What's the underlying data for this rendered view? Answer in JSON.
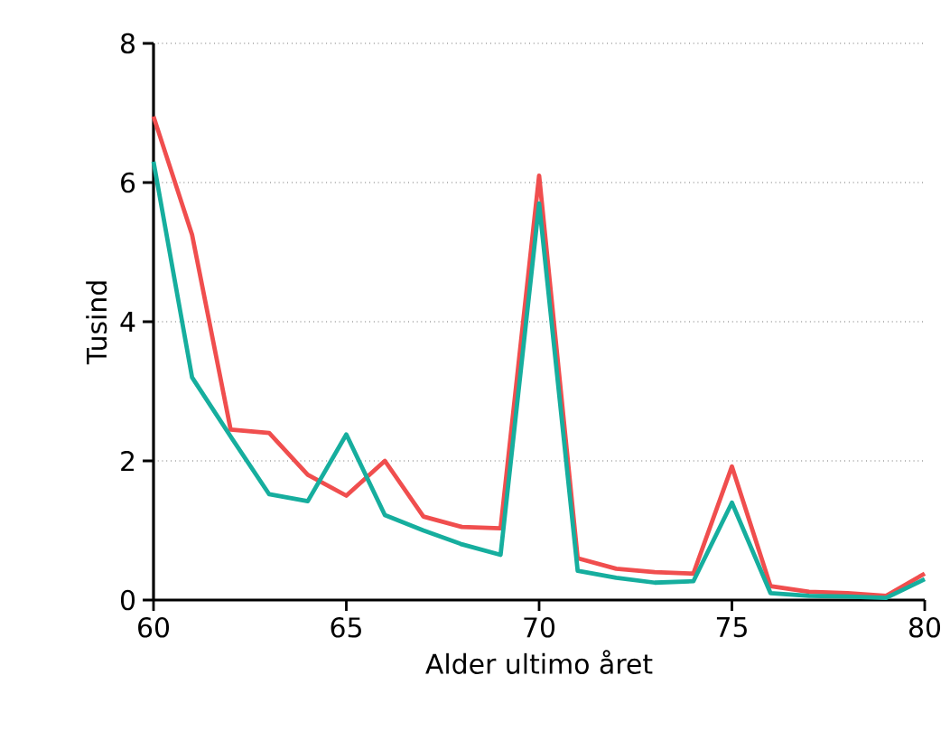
{
  "chart_data": {
    "type": "line",
    "xlabel": "Alder ultimo året",
    "ylabel": "Tusind",
    "x": [
      60,
      61,
      62,
      63,
      64,
      65,
      66,
      67,
      68,
      69,
      70,
      71,
      72,
      73,
      74,
      75,
      76,
      77,
      78,
      79,
      80
    ],
    "series": [
      {
        "color": "#f04e4e",
        "values": [
          6.95,
          5.25,
          2.45,
          2.4,
          1.8,
          1.5,
          2.0,
          1.2,
          1.05,
          1.03,
          6.1,
          0.6,
          0.45,
          0.4,
          0.38,
          1.92,
          0.2,
          0.12,
          0.1,
          0.06,
          0.38
        ]
      },
      {
        "color": "#16ae9e",
        "values": [
          6.3,
          3.2,
          2.35,
          1.52,
          1.42,
          2.38,
          1.22,
          1.0,
          0.8,
          0.65,
          5.7,
          0.42,
          0.32,
          0.25,
          0.27,
          1.4,
          0.1,
          0.06,
          0.05,
          0.03,
          0.3
        ]
      }
    ],
    "xlim": [
      60,
      80
    ],
    "ylim": [
      0,
      8
    ],
    "xticks": [
      60,
      65,
      70,
      75,
      80
    ],
    "yticks": [
      0,
      2,
      4,
      6,
      8
    ],
    "grid": "y",
    "marker": "none",
    "line_style": "solid"
  }
}
